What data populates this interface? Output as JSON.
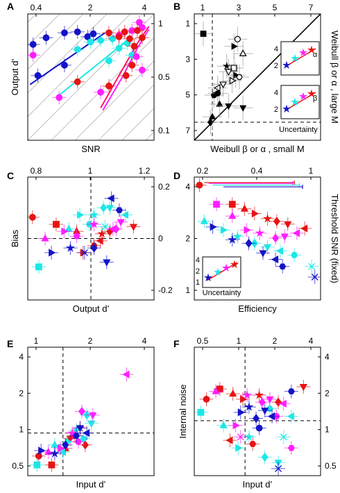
{
  "figure": {
    "colors": {
      "blue": "#1414c8",
      "cyan": "#1ee6e6",
      "magenta": "#ff1eff",
      "red": "#e61414",
      "crimson": "#ff1464",
      "grid": "#b4b4b4"
    }
  },
  "chart_data": [
    {
      "id": "A",
      "panel_label": "A",
      "type": "scatter",
      "xlabel": "SNR",
      "ylabel": "Output d’",
      "x_ticks": [
        "0.4",
        "2",
        "4"
      ],
      "y_ticks": [
        "1",
        "0.5",
        "0.1"
      ],
      "log_scale": true,
      "xlim": [
        0.4,
        6.5
      ],
      "ylim": [
        0.1,
        1.5
      ],
      "grid": "diagonal",
      "series": [
        {
          "color": "blue",
          "points": [
            [
              0.6,
              0.9
            ],
            [
              0.9,
              1.0
            ],
            [
              1.2,
              1.02
            ],
            [
              1.5,
              0.92
            ],
            [
              1.7,
              0.98
            ],
            [
              0.5,
              0.4
            ],
            [
              0.9,
              0.5
            ],
            [
              0.45,
              0.78
            ]
          ]
        },
        {
          "color": "cyan",
          "points": [
            [
              1.2,
              0.7
            ],
            [
              1.6,
              0.82
            ],
            [
              2.0,
              0.85
            ],
            [
              2.6,
              0.88
            ],
            [
              3.0,
              0.72
            ],
            [
              3.6,
              0.8
            ],
            [
              4.0,
              0.62
            ],
            [
              2.4,
              0.55
            ]
          ]
        },
        {
          "color": "magenta",
          "points": [
            [
              0.45,
              0.62
            ],
            [
              3.0,
              0.95
            ],
            [
              4.0,
              1.05
            ],
            [
              4.7,
              1.25
            ],
            [
              5.0,
              1.12
            ],
            [
              0.8,
              0.25
            ],
            [
              4.4,
              0.6
            ],
            [
              5.0,
              0.45
            ],
            [
              2.0,
              0.28
            ]
          ]
        },
        {
          "color": "red",
          "points": [
            [
              2.4,
              1.0
            ],
            [
              3.0,
              0.92
            ],
            [
              3.4,
              1.02
            ],
            [
              3.8,
              0.88
            ],
            [
              4.2,
              0.75
            ],
            [
              4.5,
              1.05
            ],
            [
              5.0,
              0.9
            ],
            [
              4.0,
              0.5
            ],
            [
              3.5,
              0.4
            ],
            [
              2.4,
              0.32
            ],
            [
              1.2,
              0.35
            ]
          ]
        }
      ],
      "fit_lines": [
        {
          "color": "blue",
          "points": [
            [
              0.42,
              0.33
            ],
            [
              2.2,
              1.0
            ]
          ]
        },
        {
          "color": "cyan",
          "points": [
            [
              0.75,
              0.25
            ],
            [
              3.6,
              0.85
            ]
          ]
        },
        {
          "color": "crimson",
          "points": [
            [
              2.0,
              0.2
            ],
            [
              3.0,
              0.4
            ],
            [
              4.5,
              0.8
            ],
            [
              5.8,
              1.15
            ]
          ]
        },
        {
          "color": "magenta",
          "points": [
            [
              2.1,
              0.19
            ],
            [
              3.2,
              0.38
            ],
            [
              4.5,
              0.72
            ],
            [
              5.8,
              1.08
            ]
          ]
        }
      ]
    },
    {
      "id": "B",
      "panel_label": "B",
      "type": "scatter",
      "xlabel": "Weibull β or α , small M",
      "ylabel": "Weibull β or α , large M",
      "x_ticks": [
        "1",
        "3",
        "5",
        "7"
      ],
      "y_ticks": [
        "1",
        "3",
        "5",
        "7"
      ],
      "xlim": [
        0,
        7
      ],
      "ylim": [
        0,
        7
      ],
      "inset_titles": [
        "α",
        "β"
      ],
      "inset_ticks": [
        "2",
        "4"
      ],
      "inset_xlabel": "Uncertainty",
      "series": [
        {
          "color": "black",
          "points": [
            {
              "x": 0.5,
              "y": 5.9,
              "m": "square"
            },
            {
              "x": 2.4,
              "y": 5.6,
              "m": "circle-open"
            },
            {
              "x": 2.2,
              "y": 5.2,
              "m": "tri-right"
            },
            {
              "x": 2.7,
              "y": 4.8,
              "m": "tri-up-open"
            },
            {
              "x": 1.8,
              "y": 4.1,
              "m": "star"
            },
            {
              "x": 2.2,
              "y": 4.0,
              "m": "square-open"
            },
            {
              "x": 1.9,
              "y": 3.8,
              "m": "tri-down-open"
            },
            {
              "x": 2.3,
              "y": 3.6,
              "m": "tri-right"
            },
            {
              "x": 2.5,
              "y": 3.5,
              "m": "hex-open"
            },
            {
              "x": 2.1,
              "y": 3.3,
              "m": "tri-right-open"
            },
            {
              "x": 1.6,
              "y": 3.1,
              "m": "tri-down-open"
            },
            {
              "x": 1.3,
              "y": 2.9,
              "m": "tri-left-open"
            },
            {
              "x": 1.1,
              "y": 2.5,
              "m": "circle"
            },
            {
              "x": 1.4,
              "y": 2.0,
              "m": "tri-up"
            },
            {
              "x": 1.9,
              "y": 1.9,
              "m": "tri-down"
            },
            {
              "x": 2.7,
              "y": 1.8,
              "m": "tri-down"
            },
            {
              "x": 0.9,
              "y": 1.0,
              "m": "diamond"
            },
            {
              "x": 1.0,
              "y": 1.3,
              "m": "tri-up"
            },
            {
              "x": 1.3,
              "y": 2.6,
              "m": "circle"
            }
          ]
        }
      ]
    },
    {
      "id": "C",
      "panel_label": "C",
      "type": "scatter",
      "xlabel": "Output d’",
      "ylabel": "Bias",
      "x_ticks": [
        "0.8",
        "1",
        "1.2"
      ],
      "y_ticks": [
        "0.2",
        "0",
        "-0.2"
      ],
      "xlim": [
        0.6,
        1.4
      ],
      "ylim": [
        -0.26,
        0.26
      ],
      "series": [
        {
          "color": "red",
          "points": [
            [
              0.63,
              0.09
            ],
            [
              0.78,
              0.06
            ],
            [
              0.91,
              0.03
            ],
            [
              0.95,
              -0.06
            ],
            [
              1.07,
              0.02
            ],
            [
              1.12,
              0.03
            ],
            [
              1.27,
              0.05
            ],
            [
              1.06,
              -0.01
            ],
            [
              1.02,
              -0.03
            ]
          ]
        },
        {
          "color": "cyan",
          "points": [
            [
              0.67,
              -0.12
            ],
            [
              0.86,
              0.04
            ],
            [
              0.93,
              0.1
            ],
            [
              1.02,
              0.1
            ],
            [
              1.08,
              0.13
            ],
            [
              1.12,
              0.13
            ],
            [
              1.22,
              0.1
            ],
            [
              0.99,
              0.06
            ],
            [
              1.09,
              0.05
            ]
          ]
        },
        {
          "color": "magenta",
          "points": [
            [
              0.71,
              0.0
            ],
            [
              0.83,
              0.03
            ],
            [
              1.02,
              0.06
            ],
            [
              1.16,
              0.04
            ],
            [
              1.19,
              0.07
            ],
            [
              1.14,
              0.04
            ],
            [
              0.91,
              0.01
            ]
          ]
        },
        {
          "color": "blue",
          "points": [
            [
              0.75,
              -0.06
            ],
            [
              0.87,
              -0.04
            ],
            [
              1.02,
              -0.04
            ],
            [
              1.1,
              -0.1
            ],
            [
              1.13,
              0.17
            ],
            [
              1.18,
              0.12
            ],
            [
              0.96,
              -0.06
            ]
          ]
        }
      ]
    },
    {
      "id": "D",
      "panel_label": "D",
      "type": "scatter",
      "xlabel": "Efficiency",
      "ylabel": "Threshold SNR (fixed)",
      "x_ticks": [
        "0.2",
        "0.4",
        "1"
      ],
      "y_ticks": [
        "4",
        "2",
        "1"
      ],
      "log_scale": true,
      "xlim": [
        0.1,
        1.0
      ],
      "ylim": [
        1.0,
        5.0
      ],
      "inset_ticks": [
        "1",
        "2",
        "4"
      ],
      "inset_xlabel": "Uncertainty",
      "series": [
        {
          "color": "red",
          "points": [
            [
              0.11,
              4.5
            ],
            [
              0.2,
              3.5
            ],
            [
              0.25,
              3.3
            ],
            [
              0.3,
              3.1
            ],
            [
              0.38,
              2.9
            ],
            [
              0.45,
              2.8
            ],
            [
              0.55,
              2.7
            ],
            [
              0.75,
              2.55
            ]
          ]
        },
        {
          "color": "magenta",
          "points": [
            [
              0.15,
              3.5
            ],
            [
              0.2,
              3.0
            ],
            [
              0.26,
              2.5
            ],
            [
              0.33,
              2.4
            ],
            [
              0.44,
              2.25
            ],
            [
              0.52,
              2.3
            ],
            [
              0.65,
              2.4
            ]
          ]
        },
        {
          "color": "cyan",
          "points": [
            [
              0.12,
              2.8
            ],
            [
              0.17,
              2.5
            ],
            [
              0.22,
              2.3
            ],
            [
              0.3,
              2.1
            ],
            [
              0.38,
              2.0
            ],
            [
              0.48,
              1.9
            ],
            [
              0.62,
              1.8
            ],
            [
              0.85,
              1.55
            ]
          ]
        },
        {
          "color": "blue",
          "points": [
            [
              0.14,
              2.6
            ],
            [
              0.2,
              2.2
            ],
            [
              0.27,
              2.1
            ],
            [
              0.35,
              1.85
            ],
            [
              0.44,
              1.7
            ],
            [
              0.5,
              1.55
            ],
            [
              0.9,
              1.35
            ]
          ]
        }
      ],
      "error_bars": [
        {
          "color": "red",
          "x": [
            0.12,
            0.62
          ],
          "y": 4.65
        },
        {
          "color": "magenta",
          "x": [
            0.13,
            0.6
          ],
          "y": 4.6
        },
        {
          "color": "cyan",
          "x": [
            0.14,
            0.68
          ],
          "y": 4.5
        },
        {
          "color": "blue",
          "x": [
            0.17,
            0.72
          ],
          "y": 4.4
        }
      ]
    },
    {
      "id": "E",
      "panel_label": "E",
      "type": "scatter",
      "xlabel": "Input d’",
      "ylabel": "",
      "x_ticks": [
        "1",
        "2",
        "4"
      ],
      "y_ticks": [
        "4",
        "2",
        "1",
        "0.5"
      ],
      "log_scale": true,
      "xlim": [
        0.5,
        6.0
      ],
      "ylim": [
        0.45,
        5.0
      ],
      "series": [
        {
          "color": "red",
          "points": [
            [
              0.62,
              0.65
            ],
            [
              0.8,
              0.55
            ],
            [
              1.05,
              0.75
            ],
            [
              1.25,
              0.95
            ],
            [
              1.4,
              1.1
            ],
            [
              1.55,
              0.8
            ],
            [
              1.15,
              0.9
            ]
          ]
        },
        {
          "color": "cyan",
          "points": [
            [
              0.6,
              0.55
            ],
            [
              0.85,
              0.8
            ],
            [
              1.1,
              0.85
            ],
            [
              1.3,
              1.05
            ],
            [
              1.6,
              1.4
            ],
            [
              1.75,
              1.2
            ],
            [
              1.0,
              0.7
            ],
            [
              1.5,
              0.9
            ]
          ]
        },
        {
          "color": "magenta",
          "points": [
            [
              0.75,
              0.7
            ],
            [
              0.95,
              0.75
            ],
            [
              1.2,
              1.0
            ],
            [
              1.45,
              1.5
            ],
            [
              1.8,
              1.4
            ],
            [
              3.5,
              3.0
            ],
            [
              1.35,
              0.85
            ]
          ]
        },
        {
          "color": "blue",
          "points": [
            [
              0.65,
              0.72
            ],
            [
              0.85,
              0.68
            ],
            [
              1.05,
              0.8
            ],
            [
              1.4,
              1.1
            ],
            [
              1.6,
              1.0
            ],
            [
              1.3,
              0.95
            ]
          ]
        }
      ]
    },
    {
      "id": "F",
      "panel_label": "F",
      "type": "scatter",
      "xlabel": "Input d’",
      "ylabel": "Internal noise",
      "x_ticks": [
        "0.5",
        "1",
        "2",
        "4"
      ],
      "y_ticks": [
        "4",
        "2",
        "1",
        "0.5"
      ],
      "log_scale": true,
      "xlim": [
        0.3,
        6.0
      ],
      "ylim": [
        0.3,
        5.0
      ],
      "series": [
        {
          "color": "red",
          "points": [
            [
              0.4,
              1.6
            ],
            [
              0.55,
              2.0
            ],
            [
              0.75,
              1.8
            ],
            [
              0.95,
              1.6
            ],
            [
              1.4,
              1.75
            ],
            [
              2.2,
              1.5
            ],
            [
              4.0,
              2.1
            ],
            [
              0.7,
              0.65
            ],
            [
              1.2,
              0.6
            ]
          ]
        },
        {
          "color": "cyan",
          "points": [
            [
              0.35,
              1.2
            ],
            [
              0.6,
              0.9
            ],
            [
              0.85,
              0.55
            ],
            [
              1.1,
              0.7
            ],
            [
              1.6,
              0.45
            ],
            [
              2.2,
              0.4
            ],
            [
              3.0,
              1.1
            ],
            [
              1.8,
              1.3
            ],
            [
              2.5,
              0.7
            ]
          ]
        },
        {
          "color": "magenta",
          "points": [
            [
              0.5,
              1.9
            ],
            [
              0.8,
              0.9
            ],
            [
              1.05,
              1.75
            ],
            [
              1.5,
              1.5
            ],
            [
              1.8,
              1.6
            ],
            [
              2.5,
              1.45
            ],
            [
              3.0,
              0.55
            ],
            [
              0.9,
              0.7
            ],
            [
              2.1,
              1.1
            ]
          ]
        },
        {
          "color": "blue",
          "points": [
            [
              0.9,
              1.2
            ],
            [
              1.1,
              1.35
            ],
            [
              1.3,
              1.05
            ],
            [
              1.6,
              1.25
            ],
            [
              1.9,
              1.1
            ],
            [
              3.0,
              1.9
            ],
            [
              2.2,
              0.35
            ],
            [
              1.4,
              0.85
            ]
          ]
        }
      ]
    }
  ]
}
